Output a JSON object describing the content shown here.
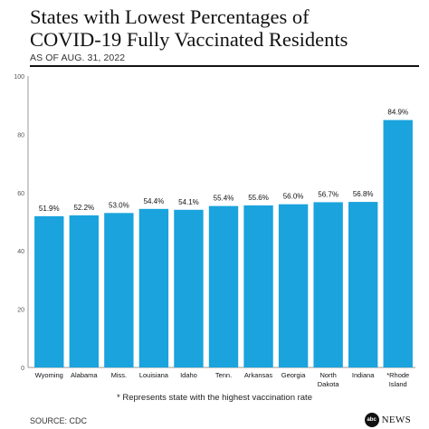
{
  "header": {
    "title_line1": "States with Lowest Percentages of",
    "title_line2": "COVID-19 Fully Vaccinated Residents",
    "subtitle": "AS OF AUG. 31, 2022"
  },
  "footer": {
    "footnote": "* Represents state with the highest vaccination rate",
    "source": "SOURCE: CDC",
    "logo_mark": "abc",
    "logo_word": "NEWS"
  },
  "colors": {
    "bar": "#1aa3dd",
    "axis": "#999999",
    "text": "#111111"
  },
  "chart_data": {
    "type": "bar",
    "categories": [
      [
        "Wyoming"
      ],
      [
        "Alabama"
      ],
      [
        "Miss."
      ],
      [
        "Louisiana"
      ],
      [
        "Idaho"
      ],
      [
        "Tenn."
      ],
      [
        "Arkansas"
      ],
      [
        "Georgia"
      ],
      [
        "North",
        "Dakota"
      ],
      [
        "Indiana"
      ],
      [
        "*Rhode",
        "Island"
      ]
    ],
    "values": [
      51.9,
      52.2,
      53.0,
      54.4,
      54.1,
      55.4,
      55.6,
      56.0,
      56.7,
      56.8,
      84.9
    ],
    "data_labels": [
      "51.9%",
      "52.2%",
      "53.0%",
      "54.4%",
      "54.1%",
      "55.4%",
      "55.6%",
      "56.0%",
      "56.7%",
      "56.8%",
      "84.9%"
    ],
    "yticks": [
      0,
      20,
      40,
      60,
      80,
      100
    ],
    "ylim": [
      0,
      100
    ]
  }
}
